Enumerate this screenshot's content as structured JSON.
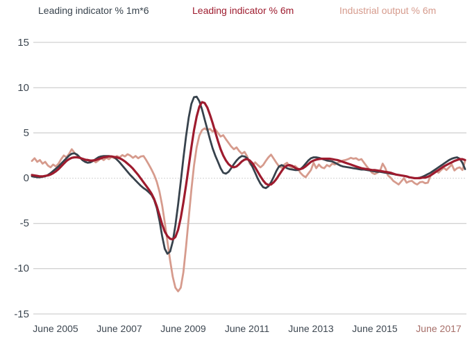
{
  "legend": {
    "items": [
      {
        "label": "Leading indicator % 1m*6",
        "color": "#37424c"
      },
      {
        "label": "Leading indicator % 6m",
        "color": "#9e1b2e"
      },
      {
        "label": "Industrial output % 6m",
        "color": "#d69b8d"
      }
    ]
  },
  "chart_data": {
    "type": "line",
    "title": "",
    "xlabel": "",
    "ylabel": "",
    "x_unit": "monthly",
    "x_range_note": "monthly points from Sep 2004 to Apr 2018",
    "ylim": [
      -15,
      15
    ],
    "y_ticks": [
      15,
      10,
      5,
      0,
      -5,
      -10,
      -15
    ],
    "grid": "horizontal",
    "zero_line_style": "dotted",
    "legend_position": "top",
    "x_tick_labels": [
      "June 2005",
      "June 2007",
      "June 2009",
      "June 2011",
      "June 2013",
      "June 2015",
      "June 2017"
    ],
    "x_tick_month_index": [
      9,
      33,
      57,
      81,
      105,
      129,
      153
    ],
    "x_tick_label_colors": [
      "#3c4650",
      "#3c4650",
      "#3c4650",
      "#3c4650",
      "#3c4650",
      "#3c4650",
      "#a66e68"
    ],
    "grid_color": "#c4c4c4",
    "zero_line_color": "#d2d2d2",
    "series": [
      {
        "name": "Industrial output % 6m",
        "color": "#d69b8d",
        "stroke_width": 2.8,
        "z": 1,
        "values": [
          1.9,
          2.2,
          1.8,
          2.0,
          1.6,
          1.8,
          1.4,
          1.2,
          1.5,
          1.3,
          1.6,
          2.1,
          2.5,
          2.3,
          2.7,
          3.2,
          2.8,
          2.5,
          2.3,
          2.0,
          1.85,
          2.05,
          1.8,
          2.0,
          1.75,
          1.95,
          2.2,
          2.0,
          2.25,
          2.1,
          2.35,
          2.2,
          2.45,
          2.3,
          2.55,
          2.4,
          2.65,
          2.5,
          2.25,
          2.45,
          2.2,
          2.4,
          2.45,
          2.0,
          1.5,
          0.95,
          0.35,
          -0.4,
          -1.5,
          -3.0,
          -4.9,
          -7.0,
          -9.1,
          -10.9,
          -12.1,
          -12.5,
          -12.1,
          -10.4,
          -7.6,
          -4.4,
          -1.3,
          1.4,
          3.4,
          4.7,
          5.3,
          5.5,
          5.3,
          5.45,
          5.15,
          5.4,
          5.0,
          4.6,
          4.75,
          4.3,
          3.9,
          3.5,
          3.2,
          3.4,
          3.0,
          2.7,
          2.9,
          2.4,
          1.6,
          1.3,
          1.75,
          1.45,
          1.2,
          1.45,
          1.9,
          2.3,
          2.6,
          2.15,
          1.7,
          1.3,
          1.15,
          1.5,
          1.7,
          1.3,
          1.15,
          1.35,
          1.1,
          0.6,
          0.3,
          0.1,
          0.5,
          0.9,
          1.7,
          1.1,
          1.5,
          1.2,
          1.1,
          1.45,
          1.3,
          1.6,
          1.5,
          1.7,
          1.8,
          1.95,
          2.0,
          2.1,
          2.25,
          2.15,
          2.2,
          2.0,
          2.1,
          1.7,
          1.3,
          0.95,
          0.6,
          0.45,
          0.6,
          0.8,
          1.6,
          1.1,
          0.3,
          0.05,
          -0.3,
          -0.5,
          -0.7,
          -0.35,
          0.0,
          -0.5,
          -0.35,
          -0.3,
          -0.55,
          -0.7,
          -0.45,
          -0.4,
          -0.55,
          -0.5,
          0.25,
          0.6,
          0.85,
          0.6,
          0.9,
          1.15,
          0.9,
          1.2,
          1.5,
          0.85,
          1.1,
          1.2,
          0.9,
          1.9
        ]
      },
      {
        "name": "Leading indicator % 1m*6",
        "color": "#37424c",
        "stroke_width": 2.8,
        "z": 2,
        "values": [
          0.2,
          0.15,
          0.1,
          0.1,
          0.15,
          0.2,
          0.35,
          0.55,
          0.8,
          1.05,
          1.3,
          1.6,
          1.9,
          2.2,
          2.5,
          2.7,
          2.75,
          2.6,
          2.3,
          2.0,
          1.8,
          1.7,
          1.75,
          1.9,
          2.1,
          2.3,
          2.4,
          2.45,
          2.45,
          2.45,
          2.4,
          2.3,
          2.05,
          1.75,
          1.4,
          1.05,
          0.7,
          0.35,
          0.05,
          -0.25,
          -0.55,
          -0.85,
          -1.1,
          -1.3,
          -1.55,
          -1.85,
          -2.4,
          -3.3,
          -4.7,
          -6.4,
          -7.8,
          -8.35,
          -8.1,
          -7.0,
          -5.2,
          -2.9,
          -0.4,
          2.2,
          4.6,
          6.7,
          8.2,
          8.95,
          9.0,
          8.5,
          7.6,
          6.5,
          5.4,
          4.3,
          3.3,
          2.5,
          1.8,
          1.1,
          0.6,
          0.5,
          0.7,
          1.1,
          1.55,
          1.95,
          2.25,
          2.45,
          2.4,
          2.2,
          1.8,
          1.25,
          0.6,
          -0.05,
          -0.6,
          -1.0,
          -1.1,
          -0.9,
          -0.45,
          0.15,
          0.8,
          1.3,
          1.45,
          1.3,
          1.1,
          1.0,
          0.95,
          0.9,
          0.9,
          1.0,
          1.25,
          1.6,
          1.95,
          2.2,
          2.3,
          2.3,
          2.25,
          2.15,
          2.05,
          1.95,
          1.9,
          1.85,
          1.7,
          1.55,
          1.4,
          1.3,
          1.25,
          1.2,
          1.15,
          1.1,
          1.05,
          1.0,
          0.95,
          0.95,
          0.9,
          0.85,
          0.8,
          0.75,
          0.7,
          0.7,
          0.65,
          0.6,
          0.55,
          0.5,
          0.45,
          0.4,
          0.35,
          0.3,
          0.25,
          0.2,
          0.1,
          0.05,
          0.0,
          0.0,
          0.05,
          0.15,
          0.3,
          0.45,
          0.6,
          0.8,
          1.0,
          1.2,
          1.4,
          1.6,
          1.8,
          2.0,
          2.15,
          2.25,
          2.3,
          2.15,
          1.7,
          1.0
        ]
      },
      {
        "name": "Leading indicator % 6m",
        "color": "#9e1b2e",
        "stroke_width": 3.2,
        "z": 3,
        "values": [
          0.35,
          0.3,
          0.25,
          0.2,
          0.2,
          0.25,
          0.3,
          0.4,
          0.55,
          0.75,
          1.0,
          1.3,
          1.6,
          1.9,
          2.1,
          2.25,
          2.3,
          2.3,
          2.25,
          2.15,
          2.05,
          2.0,
          1.95,
          1.95,
          2.0,
          2.1,
          2.2,
          2.3,
          2.35,
          2.4,
          2.4,
          2.35,
          2.3,
          2.2,
          2.05,
          1.85,
          1.6,
          1.35,
          1.05,
          0.7,
          0.35,
          -0.05,
          -0.45,
          -0.85,
          -1.25,
          -1.7,
          -2.3,
          -3.1,
          -4.1,
          -5.1,
          -5.9,
          -6.4,
          -6.7,
          -6.75,
          -6.5,
          -5.7,
          -4.4,
          -2.7,
          -0.8,
          1.3,
          3.4,
          5.3,
          6.8,
          7.9,
          8.4,
          8.3,
          7.8,
          7.0,
          6.1,
          5.1,
          4.1,
          3.2,
          2.5,
          1.95,
          1.55,
          1.3,
          1.2,
          1.3,
          1.55,
          1.85,
          2.05,
          2.1,
          1.95,
          1.65,
          1.2,
          0.7,
          0.2,
          -0.25,
          -0.6,
          -0.75,
          -0.7,
          -0.45,
          -0.1,
          0.35,
          0.8,
          1.2,
          1.4,
          1.45,
          1.35,
          1.15,
          1.0,
          1.0,
          1.1,
          1.3,
          1.55,
          1.8,
          1.95,
          2.05,
          2.1,
          2.15,
          2.15,
          2.15,
          2.15,
          2.1,
          2.05,
          2.0,
          1.9,
          1.8,
          1.7,
          1.6,
          1.5,
          1.4,
          1.3,
          1.2,
          1.1,
          1.05,
          1.0,
          0.95,
          0.9,
          0.9,
          0.85,
          0.8,
          0.75,
          0.7,
          0.65,
          0.6,
          0.5,
          0.4,
          0.35,
          0.3,
          0.25,
          0.2,
          0.1,
          0.05,
          0.0,
          0.0,
          0.0,
          0.05,
          0.05,
          0.15,
          0.3,
          0.5,
          0.7,
          0.9,
          1.1,
          1.3,
          1.45,
          1.6,
          1.75,
          1.9,
          2.0,
          2.1,
          2.1,
          2.0
        ]
      }
    ]
  }
}
